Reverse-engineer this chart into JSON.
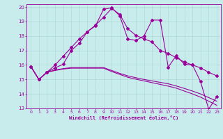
{
  "xlabel": "Windchill (Refroidissement éolien,°C)",
  "background_color": "#c8ecec",
  "line_color": "#990099",
  "grid_color": "#b0d8d8",
  "xlim": [
    -0.5,
    23.5
  ],
  "ylim": [
    13,
    20.2
  ],
  "xticks": [
    0,
    1,
    2,
    3,
    4,
    5,
    6,
    7,
    8,
    9,
    10,
    11,
    12,
    13,
    14,
    15,
    16,
    17,
    18,
    19,
    20,
    21,
    22,
    23
  ],
  "yticks": [
    13,
    14,
    15,
    16,
    17,
    18,
    19,
    20
  ],
  "series": {
    "line1": [
      15.9,
      15.0,
      15.5,
      16.0,
      16.6,
      17.2,
      17.8,
      18.3,
      18.7,
      19.85,
      19.95,
      19.4,
      17.8,
      17.7,
      18.0,
      19.1,
      19.1,
      15.85,
      16.65,
      16.05,
      16.0,
      14.85,
      12.95,
      13.8
    ],
    "line2": [
      15.9,
      15.0,
      15.5,
      15.8,
      16.05,
      17.0,
      17.5,
      18.3,
      18.75,
      19.3,
      19.9,
      19.5,
      18.5,
      18.05,
      17.8,
      17.6,
      17.0,
      16.8,
      16.5,
      16.2,
      16.0,
      15.8,
      15.5,
      15.25
    ],
    "line3": [
      15.9,
      15.0,
      15.5,
      15.65,
      15.75,
      15.82,
      15.82,
      15.82,
      15.82,
      15.82,
      15.62,
      15.42,
      15.25,
      15.12,
      15.0,
      14.9,
      14.8,
      14.7,
      14.55,
      14.38,
      14.2,
      14.0,
      13.75,
      13.5
    ],
    "line4": [
      15.9,
      15.0,
      15.5,
      15.62,
      15.72,
      15.78,
      15.78,
      15.78,
      15.78,
      15.78,
      15.55,
      15.35,
      15.15,
      15.02,
      14.9,
      14.78,
      14.66,
      14.54,
      14.4,
      14.2,
      14.0,
      13.78,
      13.5,
      13.22
    ]
  }
}
